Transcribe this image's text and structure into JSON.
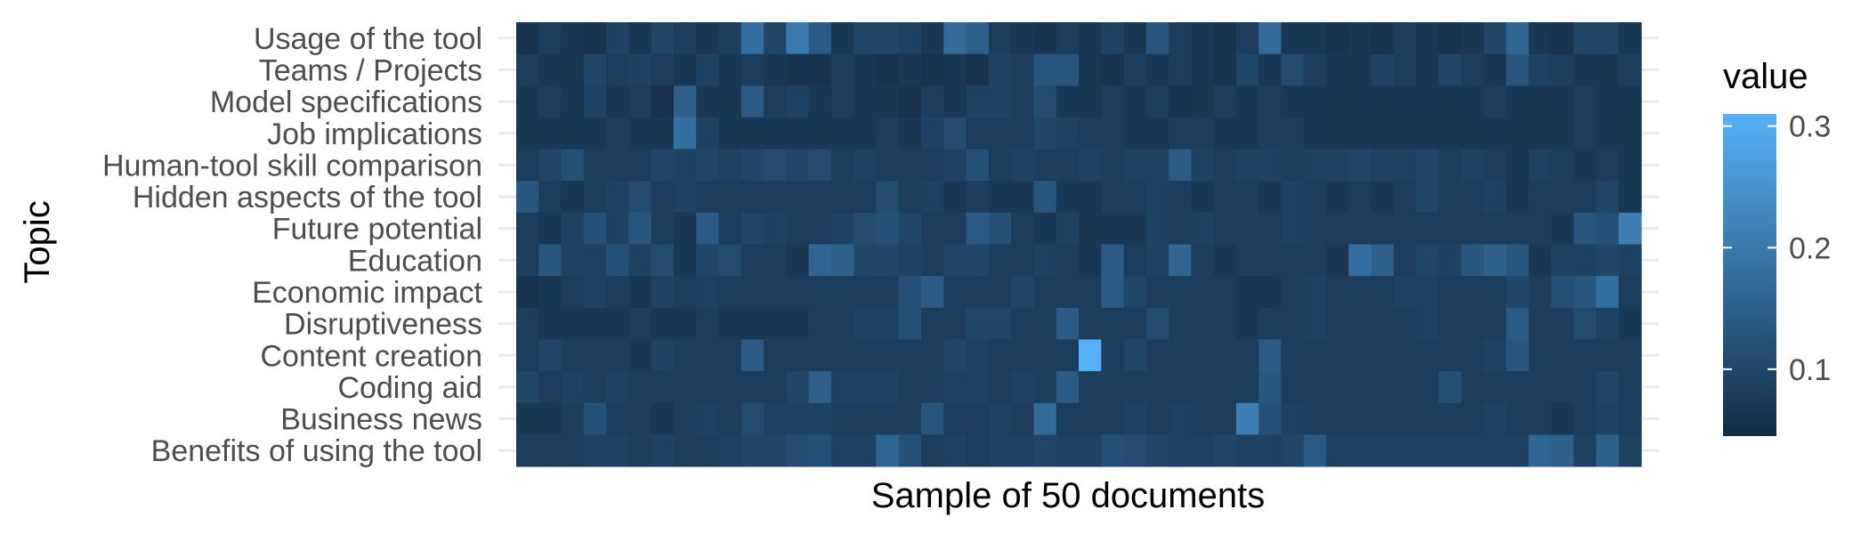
{
  "chart_data": {
    "type": "heatmap",
    "xlabel": "Sample of 50 documents",
    "ylabel": "Topic",
    "rows": [
      "Usage of the tool",
      "Teams / Projects",
      "Model specifications",
      "Job implications",
      "Human-tool skill comparison",
      "Hidden aspects of the tool",
      "Future potential",
      "Education",
      "Economic impact",
      "Disruptiveness",
      "Content creation",
      "Coding aid",
      "Business news",
      "Benefits of using the tool"
    ],
    "columns": 50,
    "legend": {
      "title": "value",
      "ticks": [
        0.1,
        0.2,
        0.3
      ],
      "min": 0.045,
      "max": 0.31,
      "position": "right"
    },
    "colors": {
      "low": "#132B43",
      "high": "#56B1F7"
    },
    "values": [
      [
        0.06,
        0.08,
        0.07,
        0.06,
        0.09,
        0.07,
        0.1,
        0.08,
        0.07,
        0.08,
        0.18,
        0.1,
        0.2,
        0.14,
        0.07,
        0.1,
        0.1,
        0.09,
        0.07,
        0.17,
        0.15,
        0.08,
        0.07,
        0.06,
        0.08,
        0.07,
        0.09,
        0.07,
        0.13,
        0.08,
        0.07,
        0.06,
        0.08,
        0.17,
        0.07,
        0.07,
        0.06,
        0.07,
        0.06,
        0.08,
        0.07,
        0.06,
        0.07,
        0.1,
        0.16,
        0.07,
        0.06,
        0.1,
        0.1,
        0.07
      ],
      [
        0.08,
        0.07,
        0.07,
        0.1,
        0.08,
        0.09,
        0.08,
        0.07,
        0.09,
        0.07,
        0.08,
        0.07,
        0.06,
        0.06,
        0.08,
        0.07,
        0.06,
        0.07,
        0.06,
        0.07,
        0.06,
        0.09,
        0.08,
        0.13,
        0.13,
        0.07,
        0.06,
        0.08,
        0.07,
        0.08,
        0.07,
        0.06,
        0.1,
        0.07,
        0.11,
        0.08,
        0.07,
        0.07,
        0.09,
        0.08,
        0.07,
        0.1,
        0.08,
        0.07,
        0.13,
        0.09,
        0.08,
        0.07,
        0.07,
        0.08
      ],
      [
        0.07,
        0.08,
        0.07,
        0.09,
        0.07,
        0.08,
        0.06,
        0.15,
        0.07,
        0.07,
        0.14,
        0.08,
        0.09,
        0.07,
        0.08,
        0.07,
        0.07,
        0.06,
        0.08,
        0.07,
        0.09,
        0.09,
        0.08,
        0.11,
        0.07,
        0.07,
        0.08,
        0.07,
        0.08,
        0.06,
        0.07,
        0.08,
        0.07,
        0.08,
        0.07,
        0.07,
        0.07,
        0.07,
        0.07,
        0.07,
        0.07,
        0.07,
        0.07,
        0.08,
        0.07,
        0.07,
        0.07,
        0.08,
        0.07,
        0.07
      ],
      [
        0.07,
        0.07,
        0.07,
        0.07,
        0.08,
        0.07,
        0.07,
        0.18,
        0.09,
        0.07,
        0.07,
        0.07,
        0.07,
        0.07,
        0.07,
        0.07,
        0.08,
        0.07,
        0.09,
        0.11,
        0.08,
        0.08,
        0.08,
        0.1,
        0.09,
        0.08,
        0.08,
        0.07,
        0.07,
        0.08,
        0.08,
        0.07,
        0.07,
        0.08,
        0.08,
        0.07,
        0.07,
        0.07,
        0.07,
        0.07,
        0.07,
        0.07,
        0.07,
        0.07,
        0.07,
        0.07,
        0.07,
        0.08,
        0.07,
        0.07
      ],
      [
        0.08,
        0.1,
        0.12,
        0.08,
        0.08,
        0.08,
        0.1,
        0.09,
        0.1,
        0.09,
        0.1,
        0.11,
        0.1,
        0.11,
        0.08,
        0.09,
        0.08,
        0.08,
        0.08,
        0.09,
        0.12,
        0.08,
        0.09,
        0.08,
        0.08,
        0.09,
        0.08,
        0.09,
        0.09,
        0.14,
        0.09,
        0.08,
        0.09,
        0.09,
        0.08,
        0.09,
        0.09,
        0.1,
        0.09,
        0.09,
        0.1,
        0.08,
        0.09,
        0.08,
        0.07,
        0.09,
        0.08,
        0.07,
        0.08,
        0.07
      ],
      [
        0.13,
        0.08,
        0.07,
        0.08,
        0.09,
        0.11,
        0.08,
        0.09,
        0.08,
        0.08,
        0.08,
        0.08,
        0.08,
        0.08,
        0.08,
        0.08,
        0.11,
        0.08,
        0.09,
        0.07,
        0.08,
        0.07,
        0.07,
        0.13,
        0.07,
        0.07,
        0.08,
        0.08,
        0.09,
        0.08,
        0.07,
        0.08,
        0.08,
        0.07,
        0.09,
        0.08,
        0.07,
        0.08,
        0.07,
        0.08,
        0.1,
        0.08,
        0.08,
        0.09,
        0.07,
        0.08,
        0.08,
        0.08,
        0.1,
        0.07
      ],
      [
        0.08,
        0.07,
        0.09,
        0.12,
        0.09,
        0.13,
        0.08,
        0.07,
        0.14,
        0.08,
        0.1,
        0.09,
        0.08,
        0.08,
        0.09,
        0.11,
        0.12,
        0.1,
        0.08,
        0.08,
        0.14,
        0.12,
        0.08,
        0.07,
        0.09,
        0.07,
        0.07,
        0.07,
        0.09,
        0.08,
        0.09,
        0.08,
        0.08,
        0.08,
        0.09,
        0.08,
        0.08,
        0.08,
        0.08,
        0.08,
        0.08,
        0.08,
        0.08,
        0.08,
        0.08,
        0.08,
        0.07,
        0.13,
        0.12,
        0.21
      ],
      [
        0.08,
        0.13,
        0.09,
        0.09,
        0.12,
        0.09,
        0.11,
        0.07,
        0.1,
        0.11,
        0.08,
        0.08,
        0.07,
        0.16,
        0.15,
        0.1,
        0.1,
        0.09,
        0.08,
        0.1,
        0.1,
        0.08,
        0.08,
        0.09,
        0.08,
        0.07,
        0.14,
        0.08,
        0.09,
        0.16,
        0.08,
        0.07,
        0.08,
        0.08,
        0.08,
        0.08,
        0.07,
        0.18,
        0.15,
        0.08,
        0.1,
        0.09,
        0.13,
        0.15,
        0.13,
        0.07,
        0.09,
        0.09,
        0.1,
        0.09
      ],
      [
        0.06,
        0.07,
        0.08,
        0.09,
        0.08,
        0.07,
        0.09,
        0.08,
        0.09,
        0.08,
        0.08,
        0.08,
        0.08,
        0.08,
        0.08,
        0.08,
        0.08,
        0.12,
        0.14,
        0.08,
        0.08,
        0.08,
        0.1,
        0.08,
        0.08,
        0.08,
        0.14,
        0.1,
        0.08,
        0.08,
        0.08,
        0.08,
        0.07,
        0.07,
        0.08,
        0.09,
        0.08,
        0.08,
        0.08,
        0.09,
        0.09,
        0.08,
        0.08,
        0.08,
        0.1,
        0.08,
        0.12,
        0.13,
        0.18,
        0.08
      ],
      [
        0.08,
        0.07,
        0.07,
        0.07,
        0.07,
        0.08,
        0.07,
        0.07,
        0.08,
        0.07,
        0.07,
        0.07,
        0.07,
        0.08,
        0.08,
        0.09,
        0.09,
        0.12,
        0.08,
        0.08,
        0.1,
        0.1,
        0.08,
        0.08,
        0.14,
        0.08,
        0.08,
        0.08,
        0.11,
        0.08,
        0.08,
        0.08,
        0.07,
        0.08,
        0.08,
        0.09,
        0.08,
        0.08,
        0.08,
        0.08,
        0.09,
        0.08,
        0.08,
        0.08,
        0.14,
        0.08,
        0.08,
        0.11,
        0.09,
        0.07
      ],
      [
        0.08,
        0.1,
        0.08,
        0.08,
        0.08,
        0.07,
        0.09,
        0.08,
        0.08,
        0.08,
        0.14,
        0.08,
        0.08,
        0.08,
        0.08,
        0.08,
        0.08,
        0.08,
        0.08,
        0.1,
        0.09,
        0.08,
        0.08,
        0.08,
        0.08,
        0.31,
        0.08,
        0.1,
        0.08,
        0.08,
        0.08,
        0.08,
        0.08,
        0.14,
        0.08,
        0.08,
        0.08,
        0.08,
        0.08,
        0.08,
        0.08,
        0.08,
        0.08,
        0.09,
        0.13,
        0.08,
        0.08,
        0.08,
        0.08,
        0.08
      ],
      [
        0.1,
        0.08,
        0.09,
        0.08,
        0.09,
        0.08,
        0.08,
        0.08,
        0.08,
        0.08,
        0.08,
        0.08,
        0.1,
        0.15,
        0.09,
        0.09,
        0.09,
        0.08,
        0.08,
        0.09,
        0.09,
        0.08,
        0.09,
        0.08,
        0.14,
        0.08,
        0.08,
        0.08,
        0.08,
        0.08,
        0.08,
        0.08,
        0.08,
        0.13,
        0.08,
        0.08,
        0.08,
        0.08,
        0.08,
        0.08,
        0.08,
        0.12,
        0.08,
        0.08,
        0.08,
        0.08,
        0.08,
        0.08,
        0.1,
        0.08
      ],
      [
        0.07,
        0.07,
        0.08,
        0.12,
        0.08,
        0.08,
        0.07,
        0.08,
        0.09,
        0.08,
        0.11,
        0.09,
        0.09,
        0.09,
        0.08,
        0.08,
        0.08,
        0.08,
        0.13,
        0.08,
        0.08,
        0.09,
        0.08,
        0.17,
        0.08,
        0.08,
        0.08,
        0.09,
        0.08,
        0.09,
        0.08,
        0.08,
        0.21,
        0.12,
        0.09,
        0.08,
        0.08,
        0.08,
        0.08,
        0.08,
        0.08,
        0.08,
        0.08,
        0.09,
        0.08,
        0.08,
        0.07,
        0.08,
        0.09,
        0.08
      ],
      [
        0.08,
        0.08,
        0.08,
        0.09,
        0.09,
        0.08,
        0.09,
        0.08,
        0.08,
        0.09,
        0.1,
        0.1,
        0.11,
        0.12,
        0.09,
        0.09,
        0.16,
        0.12,
        0.08,
        0.09,
        0.08,
        0.09,
        0.09,
        0.1,
        0.09,
        0.09,
        0.12,
        0.11,
        0.1,
        0.09,
        0.09,
        0.1,
        0.09,
        0.09,
        0.1,
        0.14,
        0.09,
        0.09,
        0.09,
        0.09,
        0.09,
        0.09,
        0.09,
        0.09,
        0.09,
        0.16,
        0.15,
        0.09,
        0.15,
        0.09
      ]
    ]
  }
}
